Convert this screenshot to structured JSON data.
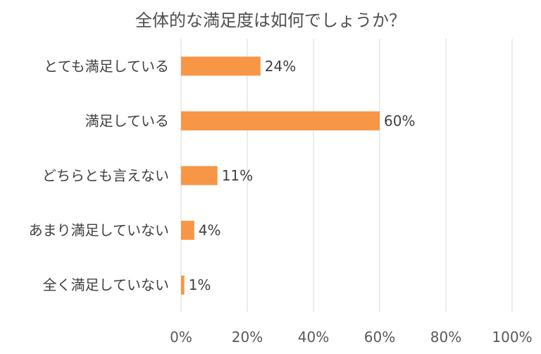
{
  "chart_data": {
    "type": "bar",
    "orientation": "horizontal",
    "title": "全体的な満足度は如何でしょうか？",
    "categories": [
      "とても満足している",
      "満足している",
      "どちらとも言えない",
      "あまり満足していない",
      "全く満足していない"
    ],
    "values": [
      24,
      60,
      11,
      4,
      1
    ],
    "value_labels": [
      "24%",
      "60%",
      "11%",
      "4%",
      "1%"
    ],
    "xlim": [
      0,
      100
    ],
    "x_ticks": [
      0,
      20,
      40,
      60,
      80,
      100
    ],
    "x_tick_labels": [
      "0%",
      "20%",
      "40%",
      "60%",
      "80%",
      "100%"
    ],
    "grid": true,
    "bar_color": "#f79646",
    "legend": "none"
  }
}
